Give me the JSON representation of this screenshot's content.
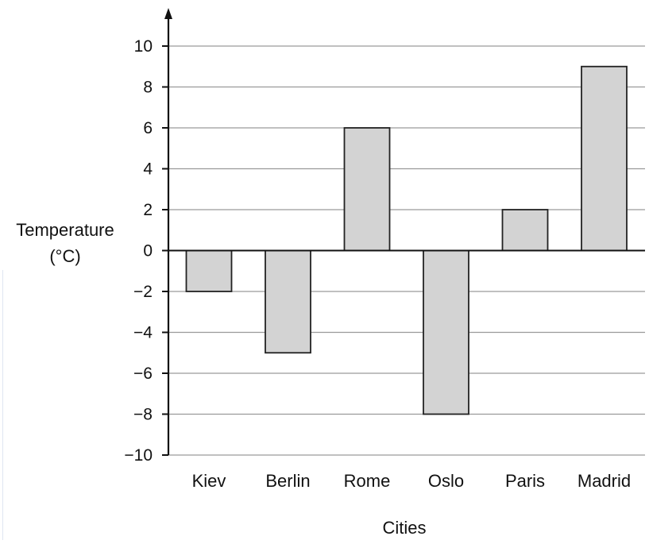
{
  "chart_data": {
    "type": "bar",
    "title": "",
    "xlabel": "Cities",
    "ylabel": "Temperature (°C)",
    "ylabel_lines": [
      "Temperature",
      "(°C)"
    ],
    "ylim": [
      -10,
      10
    ],
    "yticks": [
      10,
      8,
      6,
      4,
      2,
      0,
      -2,
      -4,
      -6,
      -8,
      -10
    ],
    "ytick_labels": [
      "10",
      "8",
      "6",
      "4",
      "2",
      "0",
      "−2",
      "−4",
      "−6",
      "−8",
      "−10"
    ],
    "grid": true,
    "categories": [
      "Kiev",
      "Berlin",
      "Rome",
      "Oslo",
      "Paris",
      "Madrid"
    ],
    "values": [
      -2,
      -5,
      6,
      -8,
      2,
      9
    ],
    "bar_color": "#d3d3d3",
    "bar_edge_color": "#222222",
    "grid_color": "#9a9a9a"
  }
}
